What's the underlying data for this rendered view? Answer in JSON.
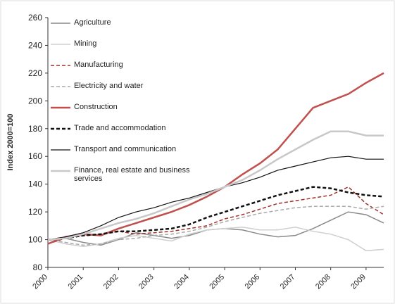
{
  "chart_data": {
    "type": "line",
    "ylabel": "Index 2000=100",
    "x": [
      2000,
      2000.5,
      2001,
      2001.5,
      2002,
      2002.5,
      2003,
      2003.5,
      2004,
      2004.5,
      2005,
      2005.5,
      2006,
      2006.5,
      2007,
      2007.5,
      2008,
      2008.5,
      2009,
      2009.5
    ],
    "xlim": [
      2000,
      2009.5
    ],
    "xticks": [
      2000,
      2001,
      2002,
      2003,
      2004,
      2005,
      2006,
      2007,
      2008,
      2009
    ],
    "ylim": [
      80,
      260
    ],
    "yticks": [
      80,
      100,
      120,
      140,
      160,
      180,
      200,
      220,
      240,
      260
    ],
    "legend": "upper left",
    "series": [
      {
        "name": "Agriculture",
        "color": "#8a8a8a",
        "width": 1.5,
        "dash": false,
        "values": [
          100,
          101,
          98,
          96,
          100,
          105,
          103,
          101,
          103,
          107,
          108,
          107,
          104,
          102,
          103,
          108,
          114,
          120,
          118,
          112
        ]
      },
      {
        "name": "Mining",
        "color": "#cfcfcf",
        "width": 1.5,
        "dash": false,
        "values": [
          100,
          97,
          95,
          97,
          101,
          103,
          101,
          99,
          104,
          107,
          108,
          109,
          107,
          107,
          109,
          106,
          104,
          100,
          92,
          93
        ]
      },
      {
        "name": "Manufacturing",
        "color": "#a0302a",
        "width": 1.5,
        "dash": true,
        "values": [
          97,
          101,
          103,
          104,
          106,
          104,
          105,
          106,
          108,
          110,
          115,
          118,
          122,
          126,
          128,
          130,
          132,
          138,
          126,
          118
        ]
      },
      {
        "name": "Electricity and water",
        "color": "#aaaaaa",
        "width": 1.5,
        "dash": true,
        "values": [
          100,
          98,
          96,
          97,
          100,
          101,
          103,
          104,
          106,
          109,
          113,
          116,
          119,
          121,
          123,
          124,
          124,
          124,
          122,
          124
        ]
      },
      {
        "name": "Construction",
        "color": "#c0504d",
        "width": 2.5,
        "dash": false,
        "values": [
          97,
          102,
          104,
          103,
          108,
          112,
          116,
          120,
          125,
          131,
          138,
          147,
          155,
          165,
          180,
          195,
          200,
          205,
          213,
          220
        ]
      },
      {
        "name": "Trade and accommodation",
        "color": "#111111",
        "width": 2.5,
        "dash": true,
        "values": [
          100,
          101,
          103,
          104,
          106,
          106,
          107,
          108,
          111,
          116,
          120,
          124,
          128,
          132,
          135,
          138,
          137,
          134,
          132,
          131
        ]
      },
      {
        "name": "Transport and communication",
        "color": "#111111",
        "width": 1.2,
        "dash": false,
        "values": [
          100,
          102,
          105,
          110,
          116,
          120,
          123,
          127,
          130,
          134,
          138,
          141,
          145,
          150,
          153,
          156,
          159,
          160,
          158,
          158
        ]
      },
      {
        "name": "Finance, real estate and business services",
        "color": "#c8c8c8",
        "width": 2.5,
        "dash": false,
        "values": [
          100,
          101,
          104,
          108,
          112,
          115,
          119,
          124,
          129,
          133,
          138,
          143,
          150,
          158,
          165,
          172,
          178,
          178,
          175,
          175
        ]
      }
    ]
  }
}
